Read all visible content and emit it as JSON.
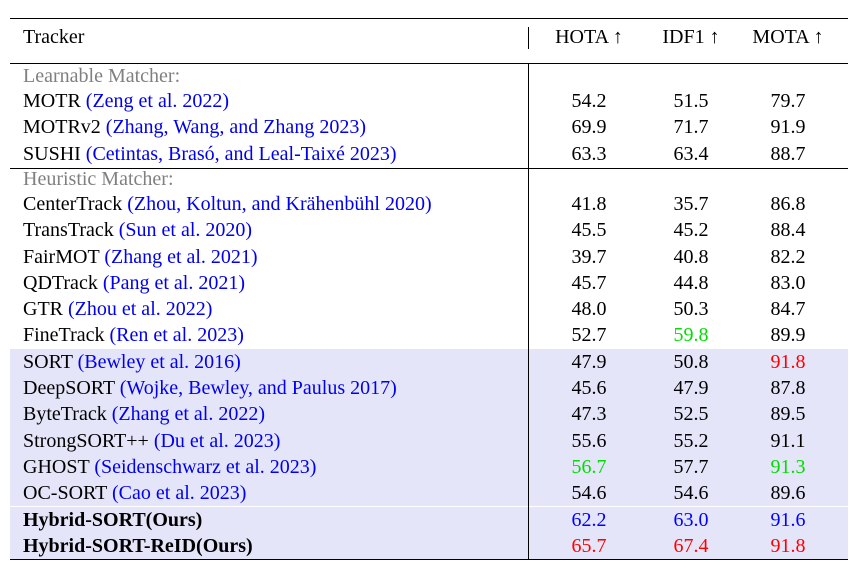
{
  "header": {
    "tracker": "Tracker",
    "hota": "HOTA ↑",
    "idf1": "IDF1 ↑",
    "mota": "MOTA ↑"
  },
  "colors": {
    "citation": "#0000ee",
    "best": "#ff0000",
    "second": "#0000ff",
    "third": "#00dd00",
    "section": "#808080",
    "highlight": "#e5e5f9"
  },
  "sections": [
    {
      "title": "Learnable Matcher:",
      "rows": [
        {
          "name": "MOTR",
          "cite": "(Zeng et al. 2022)",
          "hota": "54.2",
          "idf1": "51.5",
          "mota": "79.7"
        },
        {
          "name": "MOTRv2",
          "cite": "(Zhang, Wang, and Zhang 2023)",
          "hota": "69.9",
          "idf1": "71.7",
          "mota": "91.9"
        },
        {
          "name": "SUSHI",
          "cite": "(Cetintas, Brasó, and Leal-Taixé 2023)",
          "hota": "63.3",
          "idf1": "63.4",
          "mota": "88.7"
        }
      ]
    },
    {
      "title": "Heuristic Matcher:",
      "rows": [
        {
          "name": "CenterTrack",
          "cite": "(Zhou, Koltun, and Krähenbühl 2020)",
          "hota": "41.8",
          "idf1": "35.7",
          "mota": "86.8"
        },
        {
          "name": "TransTrack",
          "cite": "(Sun et al. 2020)",
          "hota": "45.5",
          "idf1": "45.2",
          "mota": "88.4"
        },
        {
          "name": "FairMOT",
          "cite": "(Zhang et al. 2021)",
          "hota": "39.7",
          "idf1": "40.8",
          "mota": "82.2"
        },
        {
          "name": "QDTrack",
          "cite": "(Pang et al. 2021)",
          "hota": "45.7",
          "idf1": "44.8",
          "mota": "83.0"
        },
        {
          "name": "GTR",
          "cite": "(Zhou et al. 2022)",
          "hota": "48.0",
          "idf1": "50.3",
          "mota": "84.7"
        },
        {
          "name": "FineTrack",
          "cite": "(Ren et al. 2023)",
          "hota": "52.7",
          "idf1": "59.8",
          "mota": "89.9",
          "idf1_color": "third"
        },
        {
          "name": "SORT",
          "cite": "(Bewley et al. 2016)",
          "hota": "47.9",
          "idf1": "50.8",
          "mota": "91.8",
          "mota_color": "best",
          "highlight": true
        },
        {
          "name": "DeepSORT",
          "cite": "(Wojke, Bewley, and Paulus 2017)",
          "hota": "45.6",
          "idf1": "47.9",
          "mota": "87.8",
          "highlight": true
        },
        {
          "name": "ByteTrack",
          "cite": "(Zhang et al. 2022)",
          "hota": "47.3",
          "idf1": "52.5",
          "mota": "89.5",
          "highlight": true
        },
        {
          "name": "StrongSORT++",
          "cite": "(Du et al. 2023)",
          "hota": "55.6",
          "idf1": "55.2",
          "mota": "91.1",
          "highlight": true
        },
        {
          "name": "GHOST",
          "cite": "(Seidenschwarz et al. 2023)",
          "hota": "56.7",
          "idf1": "57.7",
          "mota": "91.3",
          "hota_color": "third",
          "mota_color": "third",
          "highlight": true
        },
        {
          "name": "OC-SORT",
          "cite": "(Cao et al. 2023)",
          "hota": "54.6",
          "idf1": "54.6",
          "mota": "89.6",
          "highlight": true
        },
        {
          "name": "Hybrid-SORT(Ours)",
          "cite": "",
          "hota": "62.2",
          "idf1": "63.0",
          "mota": "91.6",
          "hota_color": "second",
          "idf1_color": "second",
          "mota_color": "second",
          "highlight": true,
          "bold": true
        },
        {
          "name": "Hybrid-SORT-ReID(Ours)",
          "cite": "",
          "hota": "65.7",
          "idf1": "67.4",
          "mota": "91.8",
          "hota_color": "best",
          "idf1_color": "best",
          "mota_color": "best",
          "highlight": true,
          "bold": true
        }
      ]
    }
  ]
}
